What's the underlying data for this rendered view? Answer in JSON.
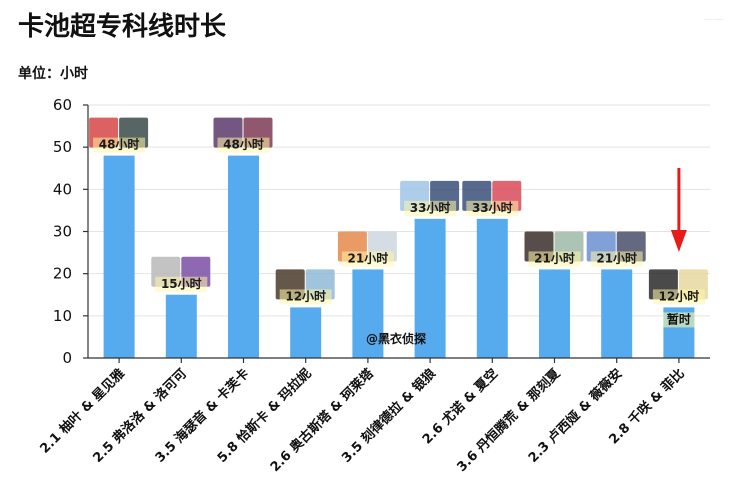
{
  "title": "卡池超专科线时长",
  "unit_label": "单位：小时",
  "corner_mark": "——",
  "watermark": "@黑衣侦探",
  "colors": {
    "bar": "#55ABEE",
    "label_bg": "#FFF6A8",
    "arrow": "#E81B1B",
    "grid": "#E3E3E3"
  },
  "chart_data": {
    "type": "bar",
    "title": "卡池超专科线时长",
    "ylabel": "单位：小时",
    "xlabel": "",
    "ylim": [
      0,
      60
    ],
    "yticks": [
      0,
      10,
      20,
      30,
      40,
      50,
      60
    ],
    "grid": true,
    "categories": [
      "2.1 柚叶 & 星见雅",
      "2.5 弗洛洛 & 洛可可",
      "3.5 海瑟音 & 卡芙卡",
      "5.8 恰斯卡 & 玛拉妮",
      "2.6 奥古斯塔 & 珂莱塔",
      "3.5 刻律德拉 & 银狼",
      "2.6 尤诺 & 夏空",
      "3.6 丹恒腾荒 & 那刻夏",
      "2.3 卢西娅 & 薇薇安",
      "2.8 千咲 & 菲比"
    ],
    "values": [
      48,
      15,
      48,
      12,
      21,
      33,
      33,
      21,
      21,
      12
    ],
    "data_labels": [
      "48小时",
      "15小时",
      "48小时",
      "12小时",
      "21小时",
      "33小时",
      "33小时",
      "21小时",
      "21小时",
      "12小时"
    ],
    "annotations": [
      {
        "category_index": 9,
        "text": "暂时"
      }
    ]
  }
}
